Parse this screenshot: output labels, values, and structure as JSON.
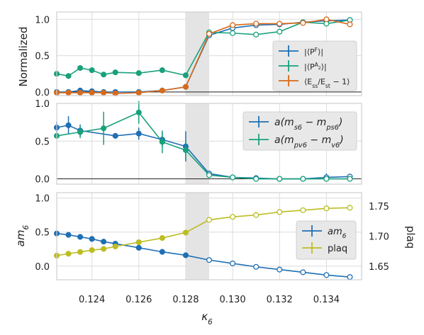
{
  "chart_data": [
    {
      "type": "line",
      "ylabel": "Normalized",
      "ylim": [
        -0.05,
        1.1
      ],
      "yticks": [
        0.0,
        0.5,
        1.0
      ],
      "grid": true,
      "legend_position": "center-right",
      "shaded_band": [
        0.128,
        0.129
      ],
      "hline": 0,
      "series": [
        {
          "name": "|⟨P^F⟩|",
          "color": "#1f6fb4",
          "x": [
            0.1225,
            0.123,
            0.1235,
            0.124,
            0.1245,
            0.125,
            0.126,
            0.127,
            0.128,
            0.129,
            0.13,
            0.131,
            0.132,
            0.133,
            0.134,
            0.135
          ],
          "y": [
            0.0,
            0.0,
            0.02,
            0.01,
            0.0,
            0.0,
            0.0,
            0.02,
            0.07,
            0.78,
            0.88,
            0.92,
            0.93,
            0.96,
            0.98,
            0.99
          ]
        },
        {
          "name": "|⟨P^A2⟩|",
          "color": "#19a17c",
          "x": [
            0.1225,
            0.123,
            0.1235,
            0.124,
            0.1245,
            0.125,
            0.126,
            0.127,
            0.128,
            0.129,
            0.13,
            0.131,
            0.132,
            0.133,
            0.134,
            0.135
          ],
          "y": [
            0.25,
            0.22,
            0.33,
            0.3,
            0.24,
            0.27,
            0.26,
            0.3,
            0.23,
            0.82,
            0.81,
            0.79,
            0.83,
            0.96,
            0.94,
            0.99
          ]
        },
        {
          "name": "⟨E_ss/E_st − 1⟩",
          "color": "#d86a1b",
          "x": [
            0.1225,
            0.123,
            0.1235,
            0.124,
            0.1245,
            0.125,
            0.126,
            0.127,
            0.128,
            0.129,
            0.13,
            0.131,
            0.132,
            0.133,
            0.134,
            0.135
          ],
          "y": [
            -0.01,
            -0.01,
            -0.01,
            -0.01,
            -0.01,
            -0.02,
            -0.01,
            0.02,
            0.07,
            0.8,
            0.92,
            0.94,
            0.94,
            0.95,
            1.0,
            0.93
          ]
        }
      ]
    },
    {
      "type": "line",
      "ylim": [
        -0.07,
        1.0
      ],
      "yticks": [
        0.0,
        0.5,
        1.0
      ],
      "grid": true,
      "legend_position": "top-right",
      "shaded_band": [
        0.128,
        0.129
      ],
      "hline": 0,
      "series": [
        {
          "name": "a(m_s6 − m_ps6)",
          "color": "#1f6fb4",
          "x": [
            0.1225,
            0.123,
            0.1235,
            0.125,
            0.126,
            0.127,
            0.128,
            0.129,
            0.13,
            0.131,
            0.132,
            0.133,
            0.134,
            0.135
          ],
          "y": [
            0.68,
            0.71,
            0.64,
            0.57,
            0.6,
            0.52,
            0.43,
            0.07,
            0.02,
            0.01,
            0.0,
            0.0,
            0.02,
            0.03
          ],
          "err": [
            0.08,
            0.12,
            0.08,
            0.02,
            0.08,
            0.1,
            0.2,
            0.04,
            0.02,
            0.02,
            0.02,
            0.02,
            0.05,
            0.02
          ]
        },
        {
          "name": "a(m_pv6 − m_v6)",
          "color": "#19a17c",
          "x": [
            0.1225,
            0.1235,
            0.1245,
            0.126,
            0.127,
            0.128,
            0.129,
            0.13,
            0.131,
            0.132,
            0.133,
            0.134,
            0.135
          ],
          "y": [
            0.57,
            0.62,
            0.67,
            0.88,
            0.49,
            0.38,
            0.05,
            0.02,
            0.0,
            0.0,
            0.0,
            0.0,
            0.0
          ],
          "err": [
            0.04,
            0.08,
            0.22,
            0.15,
            0.15,
            0.12,
            0.03,
            0.01,
            0.01,
            0.01,
            0.01,
            0.01,
            0.01
          ]
        }
      ]
    },
    {
      "type": "line",
      "ylabel": "am_6",
      "y2label": "plaq",
      "xlabel": "κ_6",
      "xlim": [
        0.1225,
        0.1355
      ],
      "xticks": [
        "0.124",
        "0.126",
        "0.128",
        "0.130",
        "0.132",
        "0.134"
      ],
      "ylim": [
        -0.2,
        1.08
      ],
      "yticks": [
        0.0,
        0.5,
        1.0
      ],
      "y2lim": [
        1.628,
        1.772
      ],
      "y2ticks": [
        1.65,
        1.7,
        1.75
      ],
      "grid": true,
      "legend_position": "center-right",
      "shaded_band": [
        0.128,
        0.129
      ],
      "series": [
        {
          "name": "am_6",
          "color": "#1f6fb4",
          "axis": "left",
          "x": [
            0.1225,
            0.123,
            0.1235,
            0.124,
            0.1245,
            0.125,
            0.126,
            0.127,
            0.128,
            0.129,
            0.13,
            0.131,
            0.132,
            0.133,
            0.134,
            0.135
          ],
          "y": [
            0.48,
            0.46,
            0.43,
            0.4,
            0.36,
            0.33,
            0.27,
            0.21,
            0.16,
            0.09,
            0.04,
            -0.01,
            -0.05,
            -0.09,
            -0.13,
            -0.16
          ]
        },
        {
          "name": "plaq",
          "color": "#bcbd22",
          "axis": "right",
          "x": [
            0.1225,
            0.123,
            0.1235,
            0.124,
            0.1245,
            0.125,
            0.126,
            0.127,
            0.128,
            0.129,
            0.13,
            0.131,
            0.132,
            0.133,
            0.134,
            0.135
          ],
          "y": [
            1.668,
            1.671,
            1.674,
            1.677,
            1.679,
            1.683,
            1.69,
            1.697,
            1.706,
            1.727,
            1.732,
            1.735,
            1.74,
            1.743,
            1.746,
            1.747
          ]
        }
      ]
    }
  ]
}
